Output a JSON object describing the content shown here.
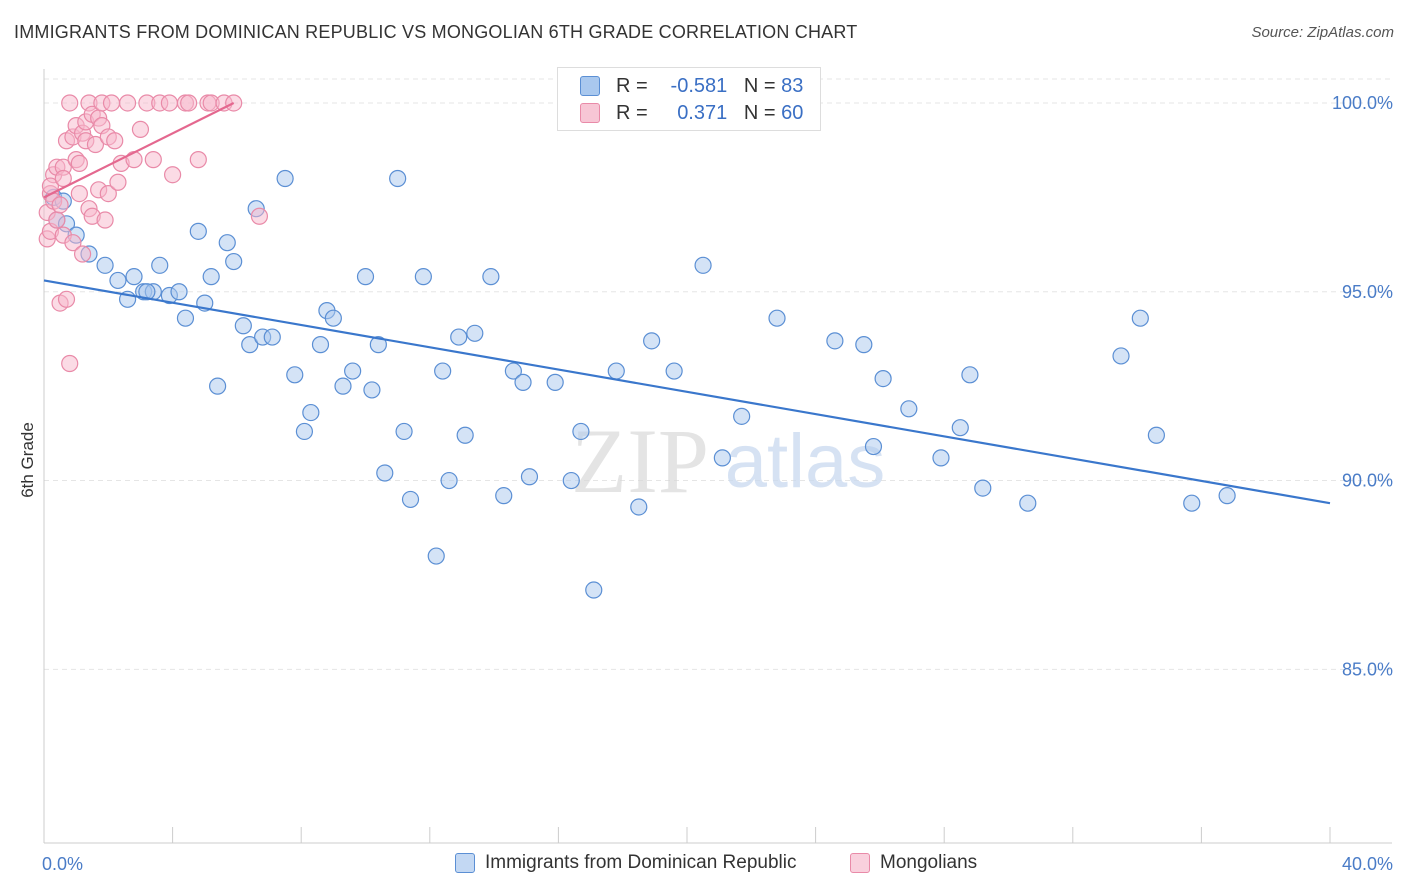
{
  "title": "IMMIGRANTS FROM DOMINICAN REPUBLIC VS MONGOLIAN 6TH GRADE CORRELATION CHART",
  "source": "Source: ZipAtlas.com",
  "watermark": {
    "zip": "ZIP",
    "atlas": "atlas"
  },
  "legend": {
    "rows": [
      {
        "r_label": "R =",
        "r_value": "-0.581",
        "n_label": "N =",
        "n_value": "83"
      },
      {
        "r_label": "R =",
        "r_value": "0.371",
        "n_label": "N =",
        "n_value": "60"
      }
    ]
  },
  "colors": {
    "blue_fill": "#a9c8ee",
    "blue_stroke": "#5b8fd4",
    "blue_line": "#3a77cc",
    "pink_fill": "#f7b8cb",
    "pink_stroke": "#e98aa8",
    "pink_line": "#e4688f",
    "grid": "#e5e5e5",
    "axis_text": "#4a7cc7"
  },
  "chart_data": {
    "type": "scatter",
    "title": "IMMIGRANTS FROM DOMINICAN REPUBLIC VS MONGOLIAN 6TH GRADE CORRELATION CHART",
    "xlabel": "",
    "ylabel": "6th Grade",
    "xlim": [
      0,
      40
    ],
    "ylim": [
      80.4,
      100.9
    ],
    "x_tick_labels": [
      "0.0%",
      "40.0%"
    ],
    "y_ticks": [
      85,
      90,
      95,
      100
    ],
    "y_tick_labels": [
      "85.0%",
      "90.0%",
      "95.0%",
      "100.0%"
    ],
    "grid": true,
    "legend_placement": "bottom-center",
    "series": [
      {
        "name": "Immigrants from Dominican Republic",
        "color": "blue",
        "R": -0.581,
        "N": 83,
        "trend": {
          "x": [
            0.0,
            40.0
          ],
          "y": [
            95.3,
            89.4
          ]
        },
        "points": [
          [
            0.3,
            97.5
          ],
          [
            0.4,
            96.9
          ],
          [
            0.6,
            97.4
          ],
          [
            0.7,
            96.8
          ],
          [
            1.0,
            96.5
          ],
          [
            1.4,
            96.0
          ],
          [
            1.9,
            95.7
          ],
          [
            2.3,
            95.3
          ],
          [
            2.6,
            94.8
          ],
          [
            2.8,
            95.4
          ],
          [
            3.1,
            95.0
          ],
          [
            3.4,
            95.0
          ],
          [
            3.6,
            95.7
          ],
          [
            3.9,
            94.9
          ],
          [
            4.2,
            95.0
          ],
          [
            4.4,
            94.3
          ],
          [
            4.8,
            96.6
          ],
          [
            5.0,
            94.7
          ],
          [
            5.2,
            95.4
          ],
          [
            5.4,
            92.5
          ],
          [
            5.7,
            96.3
          ],
          [
            5.9,
            95.8
          ],
          [
            6.2,
            94.1
          ],
          [
            6.4,
            93.6
          ],
          [
            6.6,
            97.2
          ],
          [
            6.8,
            93.8
          ],
          [
            7.1,
            93.8
          ],
          [
            7.5,
            98.0
          ],
          [
            7.8,
            92.8
          ],
          [
            8.1,
            91.3
          ],
          [
            8.3,
            91.8
          ],
          [
            8.6,
            93.6
          ],
          [
            8.8,
            94.5
          ],
          [
            9.0,
            94.3
          ],
          [
            9.3,
            92.5
          ],
          [
            9.6,
            92.9
          ],
          [
            10.0,
            95.4
          ],
          [
            10.2,
            92.4
          ],
          [
            10.4,
            93.6
          ],
          [
            10.6,
            90.2
          ],
          [
            11.0,
            98.0
          ],
          [
            11.2,
            91.3
          ],
          [
            11.4,
            89.5
          ],
          [
            11.8,
            95.4
          ],
          [
            12.2,
            88.0
          ],
          [
            12.4,
            92.9
          ],
          [
            12.6,
            90.0
          ],
          [
            12.9,
            93.8
          ],
          [
            13.1,
            91.2
          ],
          [
            13.4,
            93.9
          ],
          [
            13.9,
            95.4
          ],
          [
            14.3,
            89.6
          ],
          [
            14.6,
            92.9
          ],
          [
            14.9,
            92.6
          ],
          [
            15.1,
            90.1
          ],
          [
            15.9,
            92.6
          ],
          [
            16.4,
            90.0
          ],
          [
            16.7,
            91.3
          ],
          [
            17.1,
            87.1
          ],
          [
            17.8,
            92.9
          ],
          [
            18.5,
            89.3
          ],
          [
            18.9,
            93.7
          ],
          [
            19.6,
            92.9
          ],
          [
            20.5,
            95.7
          ],
          [
            21.1,
            90.6
          ],
          [
            21.7,
            91.7
          ],
          [
            22.8,
            94.3
          ],
          [
            24.6,
            93.7
          ],
          [
            25.5,
            93.6
          ],
          [
            25.8,
            90.9
          ],
          [
            26.1,
            92.7
          ],
          [
            26.9,
            91.9
          ],
          [
            27.9,
            90.6
          ],
          [
            28.5,
            91.4
          ],
          [
            28.8,
            92.8
          ],
          [
            29.2,
            89.8
          ],
          [
            30.6,
            89.4
          ],
          [
            33.5,
            93.3
          ],
          [
            34.1,
            94.3
          ],
          [
            34.6,
            91.2
          ],
          [
            35.7,
            89.4
          ],
          [
            36.8,
            89.6
          ],
          [
            3.2,
            95.0
          ]
        ]
      },
      {
        "name": "Mongolians",
        "color": "pink",
        "R": 0.371,
        "N": 60,
        "trend": {
          "x": [
            0.0,
            5.9
          ],
          "y": [
            97.5,
            100.0
          ]
        },
        "points": [
          [
            0.1,
            96.4
          ],
          [
            0.1,
            97.1
          ],
          [
            0.2,
            97.6
          ],
          [
            0.2,
            96.6
          ],
          [
            0.3,
            97.4
          ],
          [
            0.3,
            98.1
          ],
          [
            0.4,
            98.3
          ],
          [
            0.4,
            96.9
          ],
          [
            0.5,
            94.7
          ],
          [
            0.5,
            97.3
          ],
          [
            0.6,
            96.5
          ],
          [
            0.6,
            98.3
          ],
          [
            0.7,
            94.8
          ],
          [
            0.7,
            99.0
          ],
          [
            0.8,
            100.0
          ],
          [
            0.8,
            93.1
          ],
          [
            0.9,
            99.1
          ],
          [
            0.9,
            96.3
          ],
          [
            1.0,
            98.5
          ],
          [
            1.0,
            99.4
          ],
          [
            1.1,
            97.6
          ],
          [
            1.1,
            98.4
          ],
          [
            1.2,
            99.2
          ],
          [
            1.2,
            96.0
          ],
          [
            1.3,
            99.5
          ],
          [
            1.3,
            99.0
          ],
          [
            1.4,
            100.0
          ],
          [
            1.4,
            97.2
          ],
          [
            1.5,
            99.7
          ],
          [
            1.5,
            97.0
          ],
          [
            1.6,
            98.9
          ],
          [
            1.7,
            99.6
          ],
          [
            1.7,
            97.7
          ],
          [
            1.8,
            100.0
          ],
          [
            1.8,
            99.4
          ],
          [
            1.9,
            96.9
          ],
          [
            2.0,
            97.6
          ],
          [
            2.0,
            99.1
          ],
          [
            2.1,
            100.0
          ],
          [
            2.2,
            99.0
          ],
          [
            2.3,
            97.9
          ],
          [
            2.4,
            98.4
          ],
          [
            2.6,
            100.0
          ],
          [
            2.8,
            98.5
          ],
          [
            3.0,
            99.3
          ],
          [
            3.2,
            100.0
          ],
          [
            3.4,
            98.5
          ],
          [
            3.6,
            100.0
          ],
          [
            3.9,
            100.0
          ],
          [
            4.0,
            98.1
          ],
          [
            4.4,
            100.0
          ],
          [
            4.5,
            100.0
          ],
          [
            4.8,
            98.5
          ],
          [
            5.1,
            100.0
          ],
          [
            5.2,
            100.0
          ],
          [
            5.6,
            100.0
          ],
          [
            5.9,
            100.0
          ],
          [
            6.7,
            97.0
          ],
          [
            0.2,
            97.8
          ],
          [
            0.6,
            98.0
          ]
        ]
      }
    ]
  }
}
